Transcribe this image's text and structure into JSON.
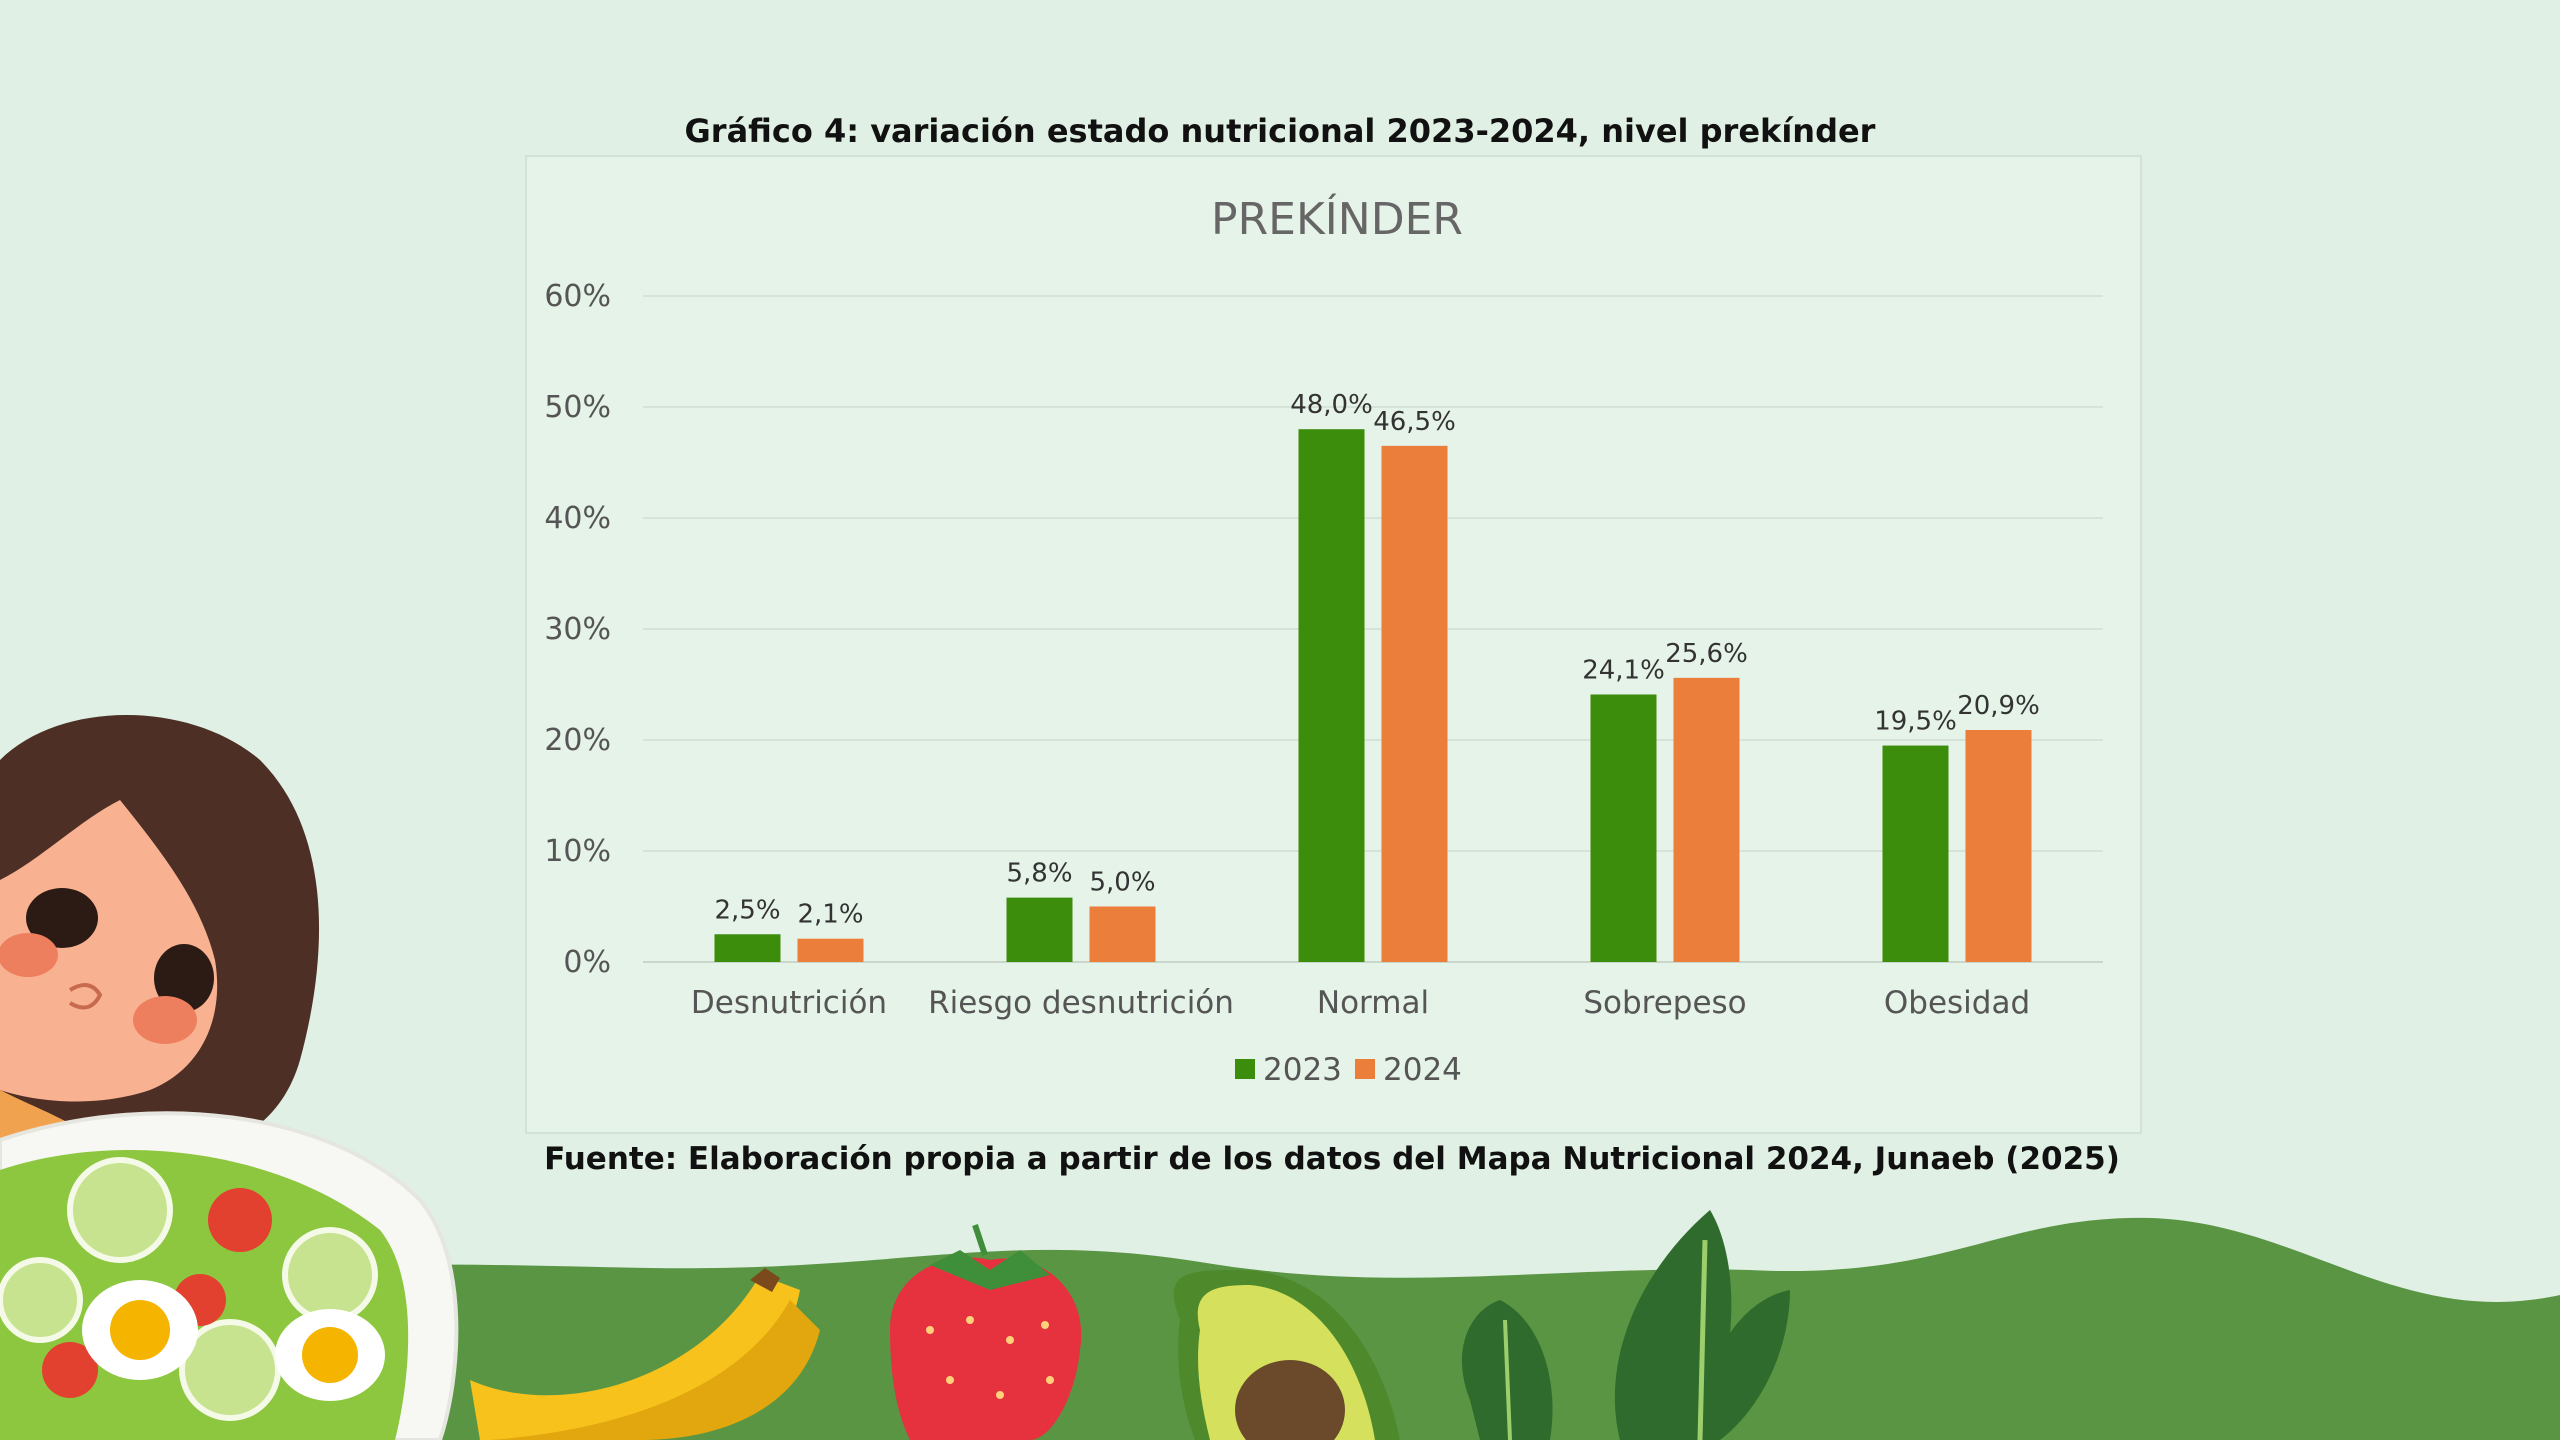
{
  "caption_top": "Gráfico 4: variación estado nutricional 2023-2024, nivel prekínder",
  "caption_bottom": "Fuente: Elaboración propia a partir de los datos del Mapa Nutricional 2024, Junaeb (2025)",
  "colors": {
    "series_2023": "#3d8d0d",
    "series_2024": "#ec7e3c",
    "background": "#e0f0e4",
    "wave": "#5a9544"
  },
  "decor_icons": [
    "girl-illustration-icon",
    "salad-bowl-icon",
    "banana-icon",
    "strawberry-icon",
    "avocado-icon",
    "spinach-icon"
  ],
  "chart_data": {
    "type": "bar",
    "title": "PREKÍNDER",
    "categories": [
      "Desnutrición",
      "Riesgo desnutrición",
      "Normal",
      "Sobrepeso",
      "Obesidad"
    ],
    "series": [
      {
        "name": "2023",
        "values": [
          2.5,
          5.8,
          48.0,
          24.1,
          19.5
        ],
        "labels": [
          "2,5%",
          "5,8%",
          "48,0%",
          "24,1%",
          "19,5%"
        ]
      },
      {
        "name": "2024",
        "values": [
          2.1,
          5.0,
          46.5,
          25.6,
          20.9
        ],
        "labels": [
          "2,1%",
          "5,0%",
          "46,5%",
          "25,6%",
          "20,9%"
        ]
      }
    ],
    "yticks": [
      0,
      10,
      20,
      30,
      40,
      50,
      60
    ],
    "ytick_labels": [
      "0%",
      "10%",
      "20%",
      "30%",
      "40%",
      "50%",
      "60%"
    ],
    "ylim": [
      0,
      60
    ],
    "grid": true,
    "legend_position": "bottom"
  }
}
